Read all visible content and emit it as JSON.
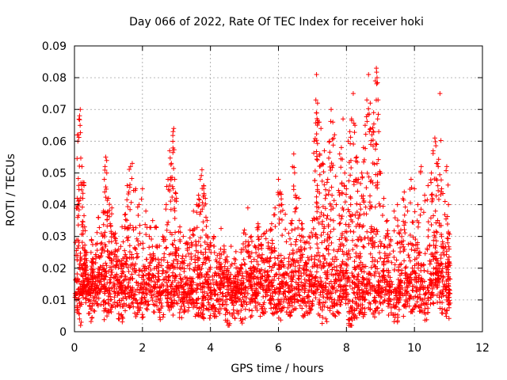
{
  "chart_data": {
    "type": "scatter",
    "title": "Day 066 of 2022, Rate Of TEC Index for receiver hoki",
    "xlabel": "GPS time / hours",
    "ylabel": "ROTI / TECUs",
    "xlim": [
      0,
      12
    ],
    "ylim": [
      0,
      0.09
    ],
    "xticks": [
      0,
      2,
      4,
      6,
      8,
      10,
      12
    ],
    "xtick_labels": [
      "0",
      "2",
      "4",
      "6",
      "8",
      "10",
      "12"
    ],
    "yticks": [
      0,
      0.01,
      0.02,
      0.03,
      0.04,
      0.05,
      0.06,
      0.07,
      0.08,
      0.09
    ],
    "ytick_labels": [
      "0",
      "0.01",
      "0.02",
      "0.03",
      "0.04",
      "0.05",
      "0.06",
      "0.07",
      "0.08",
      "0.09"
    ],
    "grid": true,
    "marker": "+",
    "color": "#ff0000",
    "series": [
      {
        "name": "ROTI",
        "points": [
          [
            0.05,
            0.01
          ],
          [
            0.08,
            0.042
          ],
          [
            0.1,
            0.06
          ],
          [
            0.12,
            0.062
          ],
          [
            0.15,
            0.068
          ],
          [
            0.17,
            0.07
          ],
          [
            0.18,
            0.002
          ],
          [
            0.2,
            0.003
          ],
          [
            0.22,
            0.052
          ],
          [
            0.25,
            0.047
          ],
          [
            0.28,
            0.046
          ],
          [
            0.3,
            0.033
          ],
          [
            0.35,
            0.025
          ],
          [
            0.4,
            0.018
          ],
          [
            0.45,
            0.012
          ],
          [
            0.5,
            0.029
          ],
          [
            0.55,
            0.022
          ],
          [
            0.6,
            0.015
          ],
          [
            0.7,
            0.036
          ],
          [
            0.8,
            0.028
          ],
          [
            0.85,
            0.038
          ],
          [
            0.9,
            0.052
          ],
          [
            0.92,
            0.055
          ],
          [
            0.95,
            0.05
          ],
          [
            1.0,
            0.042
          ],
          [
            1.05,
            0.034
          ],
          [
            1.1,
            0.039
          ],
          [
            1.2,
            0.031
          ],
          [
            1.3,
            0.026
          ],
          [
            1.4,
            0.033
          ],
          [
            1.5,
            0.037
          ],
          [
            1.55,
            0.046
          ],
          [
            1.6,
            0.044
          ],
          [
            1.65,
            0.052
          ],
          [
            1.7,
            0.053
          ],
          [
            1.8,
            0.045
          ],
          [
            1.9,
            0.04
          ],
          [
            2.0,
            0.045
          ],
          [
            2.1,
            0.038
          ],
          [
            2.2,
            0.03
          ],
          [
            2.3,
            0.035
          ],
          [
            2.4,
            0.033
          ],
          [
            2.5,
            0.027
          ],
          [
            2.6,
            0.03
          ],
          [
            2.7,
            0.04
          ],
          [
            2.75,
            0.048
          ],
          [
            2.8,
            0.057
          ],
          [
            2.85,
            0.053
          ],
          [
            2.9,
            0.063
          ],
          [
            2.92,
            0.064
          ],
          [
            2.95,
            0.048
          ],
          [
            3.0,
            0.042
          ],
          [
            3.1,
            0.033
          ],
          [
            3.2,
            0.03
          ],
          [
            3.3,
            0.028
          ],
          [
            3.4,
            0.032
          ],
          [
            3.5,
            0.038
          ],
          [
            3.6,
            0.04
          ],
          [
            3.65,
            0.043
          ],
          [
            3.7,
            0.048
          ],
          [
            3.75,
            0.051
          ],
          [
            3.8,
            0.046
          ],
          [
            3.85,
            0.042
          ],
          [
            3.9,
            0.035
          ],
          [
            4.0,
            0.028
          ],
          [
            4.1,
            0.03
          ],
          [
            4.2,
            0.024
          ],
          [
            4.3,
            0.026
          ],
          [
            4.4,
            0.027
          ],
          [
            4.5,
            0.022
          ],
          [
            4.6,
            0.018
          ],
          [
            4.7,
            0.023
          ],
          [
            4.8,
            0.02
          ],
          [
            4.9,
            0.025
          ],
          [
            5.0,
            0.032
          ],
          [
            5.1,
            0.039
          ],
          [
            5.2,
            0.03
          ],
          [
            5.3,
            0.027
          ],
          [
            5.4,
            0.034
          ],
          [
            5.5,
            0.03
          ],
          [
            5.6,
            0.031
          ],
          [
            5.7,
            0.028
          ],
          [
            5.8,
            0.034
          ],
          [
            5.9,
            0.039
          ],
          [
            6.0,
            0.048
          ],
          [
            6.05,
            0.044
          ],
          [
            6.1,
            0.04
          ],
          [
            6.2,
            0.037
          ],
          [
            6.3,
            0.031
          ],
          [
            6.4,
            0.035
          ],
          [
            6.45,
            0.056
          ],
          [
            6.5,
            0.043
          ],
          [
            6.6,
            0.042
          ],
          [
            6.7,
            0.034
          ],
          [
            6.8,
            0.028
          ],
          [
            6.9,
            0.03
          ],
          [
            7.0,
            0.035
          ],
          [
            7.05,
            0.06
          ],
          [
            7.1,
            0.073
          ],
          [
            7.12,
            0.081
          ],
          [
            7.15,
            0.072
          ],
          [
            7.2,
            0.066
          ],
          [
            7.25,
            0.064
          ],
          [
            7.3,
            0.053
          ],
          [
            7.35,
            0.057
          ],
          [
            7.4,
            0.043
          ],
          [
            7.45,
            0.048
          ],
          [
            7.5,
            0.06
          ],
          [
            7.55,
            0.07
          ],
          [
            7.6,
            0.066
          ],
          [
            7.65,
            0.062
          ],
          [
            7.7,
            0.04
          ],
          [
            7.8,
            0.056
          ],
          [
            7.85,
            0.058
          ],
          [
            7.9,
            0.067
          ],
          [
            7.95,
            0.05
          ],
          [
            8.0,
            0.045
          ],
          [
            8.05,
            0.06
          ],
          [
            8.1,
            0.063
          ],
          [
            8.15,
            0.067
          ],
          [
            8.2,
            0.075
          ],
          [
            8.25,
            0.065
          ],
          [
            8.3,
            0.055
          ],
          [
            8.35,
            0.048
          ],
          [
            8.4,
            0.04
          ],
          [
            8.45,
            0.05
          ],
          [
            8.5,
            0.058
          ],
          [
            8.55,
            0.065
          ],
          [
            8.6,
            0.073
          ],
          [
            8.65,
            0.081
          ],
          [
            8.7,
            0.072
          ],
          [
            8.75,
            0.062
          ],
          [
            8.8,
            0.069
          ],
          [
            8.85,
            0.079
          ],
          [
            8.88,
            0.083
          ],
          [
            8.9,
            0.08
          ],
          [
            8.95,
            0.063
          ],
          [
            9.0,
            0.05
          ],
          [
            9.1,
            0.042
          ],
          [
            9.2,
            0.035
          ],
          [
            9.3,
            0.029
          ],
          [
            9.4,
            0.038
          ],
          [
            9.5,
            0.04
          ],
          [
            9.6,
            0.032
          ],
          [
            9.7,
            0.044
          ],
          [
            9.8,
            0.038
          ],
          [
            9.9,
            0.048
          ],
          [
            10.0,
            0.045
          ],
          [
            10.1,
            0.04
          ],
          [
            10.2,
            0.052
          ],
          [
            10.3,
            0.043
          ],
          [
            10.4,
            0.046
          ],
          [
            10.5,
            0.05
          ],
          [
            10.55,
            0.057
          ],
          [
            10.6,
            0.061
          ],
          [
            10.65,
            0.053
          ],
          [
            10.7,
            0.052
          ],
          [
            10.75,
            0.075
          ],
          [
            10.8,
            0.045
          ],
          [
            10.9,
            0.041
          ],
          [
            10.95,
            0.052
          ],
          [
            11.0,
            0.04
          ],
          [
            11.02,
            0.022
          ],
          [
            11.04,
            0.012
          ]
        ],
        "points_bottom_band": [
          [
            0.02,
            0.012
          ],
          [
            0.15,
            0.009
          ],
          [
            0.3,
            0.014
          ],
          [
            0.45,
            0.008
          ],
          [
            0.6,
            0.011
          ],
          [
            0.75,
            0.013
          ],
          [
            0.9,
            0.009
          ],
          [
            1.05,
            0.01
          ],
          [
            1.2,
            0.012
          ],
          [
            1.35,
            0.008
          ],
          [
            1.5,
            0.011
          ],
          [
            1.65,
            0.013
          ],
          [
            1.8,
            0.01
          ],
          [
            1.95,
            0.009
          ],
          [
            2.1,
            0.012
          ],
          [
            2.25,
            0.014
          ],
          [
            2.4,
            0.011
          ],
          [
            2.55,
            0.009
          ],
          [
            2.7,
            0.013
          ],
          [
            2.85,
            0.01
          ],
          [
            3.0,
            0.012
          ],
          [
            3.15,
            0.008
          ],
          [
            3.3,
            0.011
          ],
          [
            3.45,
            0.013
          ],
          [
            3.6,
            0.01
          ],
          [
            3.75,
            0.009
          ],
          [
            3.9,
            0.012
          ],
          [
            4.05,
            0.007
          ],
          [
            4.2,
            0.01
          ],
          [
            4.35,
            0.012
          ],
          [
            4.5,
            0.006
          ],
          [
            4.65,
            0.009
          ],
          [
            4.8,
            0.011
          ],
          [
            4.95,
            0.008
          ],
          [
            5.1,
            0.012
          ],
          [
            5.25,
            0.01
          ],
          [
            5.4,
            0.009
          ],
          [
            5.55,
            0.011
          ],
          [
            5.7,
            0.013
          ],
          [
            5.85,
            0.01
          ],
          [
            6.0,
            0.009
          ],
          [
            6.15,
            0.012
          ],
          [
            6.3,
            0.01
          ],
          [
            6.45,
            0.011
          ],
          [
            6.6,
            0.013
          ],
          [
            6.75,
            0.009
          ],
          [
            6.9,
            0.011
          ],
          [
            7.05,
            0.012
          ],
          [
            7.2,
            0.01
          ],
          [
            7.35,
            0.008
          ],
          [
            7.5,
            0.012
          ],
          [
            7.65,
            0.01
          ],
          [
            7.8,
            0.011
          ],
          [
            7.95,
            0.013
          ],
          [
            8.1,
            0.004
          ],
          [
            8.25,
            0.009
          ],
          [
            8.4,
            0.011
          ],
          [
            8.55,
            0.01
          ],
          [
            8.7,
            0.012
          ],
          [
            8.85,
            0.009
          ],
          [
            9.0,
            0.011
          ],
          [
            9.15,
            0.013
          ],
          [
            9.3,
            0.01
          ],
          [
            9.45,
            0.008
          ],
          [
            9.6,
            0.012
          ],
          [
            9.75,
            0.01
          ],
          [
            9.9,
            0.011
          ],
          [
            10.05,
            0.013
          ],
          [
            10.2,
            0.01
          ],
          [
            10.35,
            0.009
          ],
          [
            10.5,
            0.012
          ],
          [
            10.65,
            0.014
          ],
          [
            10.8,
            0.011
          ],
          [
            10.95,
            0.01
          ],
          [
            11.05,
            0.009
          ]
        ]
      }
    ]
  }
}
